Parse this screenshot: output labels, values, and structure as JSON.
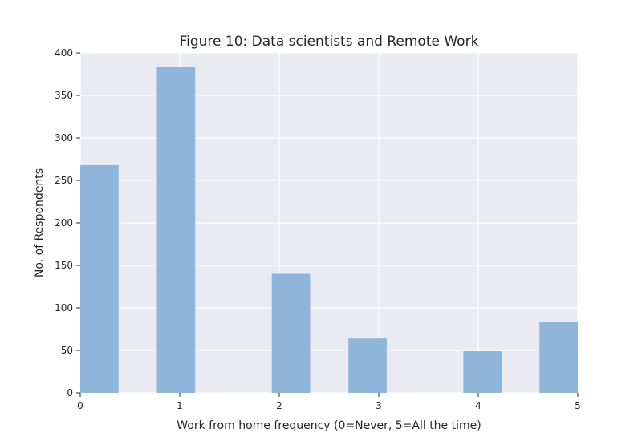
{
  "chart_data": {
    "type": "bar",
    "title": "Figure 10: Data scientists and Remote Work",
    "xlabel": "Work from home frequency (0=Never, 5=All the time)",
    "ylabel": "No. of Respondents",
    "xlim": [
      0,
      5
    ],
    "ylim": [
      0,
      400
    ],
    "xticks": [
      "0",
      "1",
      "2",
      "3",
      "4",
      "5"
    ],
    "yticks": [
      "0",
      "50",
      "100",
      "150",
      "200",
      "250",
      "300",
      "350",
      "400"
    ],
    "bins": [
      {
        "start": 0.0,
        "end": 0.385,
        "value": 268
      },
      {
        "start": 0.77,
        "end": 1.155,
        "value": 384
      },
      {
        "start": 1.925,
        "end": 2.31,
        "value": 140
      },
      {
        "start": 2.695,
        "end": 3.08,
        "value": 64
      },
      {
        "start": 3.85,
        "end": 4.235,
        "value": 49
      },
      {
        "start": 4.615,
        "end": 5.0,
        "value": 83
      }
    ],
    "grid": true,
    "colors": {
      "bar": "#8fb5da",
      "plot_background": "#eaeaf2",
      "grid": "#ffffff",
      "text": "#262626"
    }
  }
}
